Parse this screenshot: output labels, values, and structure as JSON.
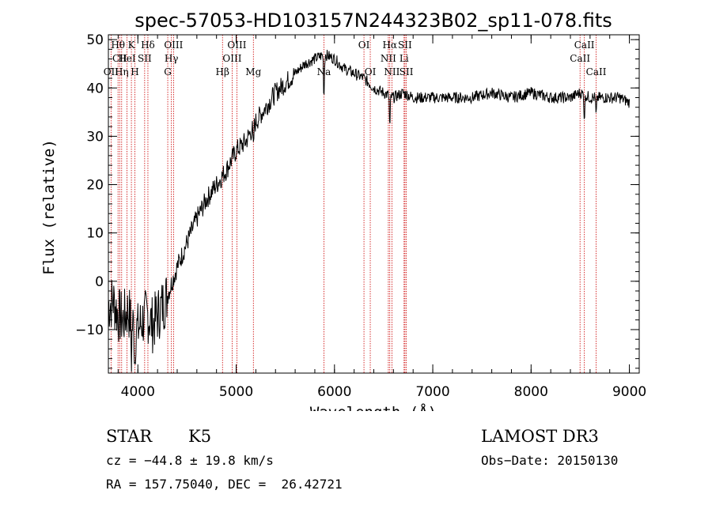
{
  "chart_data": {
    "type": "line",
    "title": "spec-57053-HD103157N244323B02_sp11-078.fits",
    "xlabel": "Wavelength (Å)",
    "ylabel": "Flux (relative)",
    "xlim": [
      3700,
      9100
    ],
    "ylim": [
      -19,
      51
    ],
    "xticks": [
      4000,
      5000,
      6000,
      7000,
      8000,
      9000
    ],
    "yticks": [
      -10,
      0,
      10,
      20,
      30,
      40,
      50
    ],
    "series": [
      {
        "name": "spectrum",
        "x": [
          3700,
          3750,
          3800,
          3850,
          3900,
          3950,
          4000,
          4050,
          4100,
          4150,
          4200,
          4250,
          4300,
          4400,
          4500,
          4600,
          4700,
          4800,
          4900,
          5000,
          5100,
          5200,
          5300,
          5400,
          5500,
          5600,
          5700,
          5800,
          5900,
          6000,
          6100,
          6200,
          6300,
          6400,
          6500,
          6600,
          6700,
          6800,
          7000,
          7200,
          7400,
          7600,
          7800,
          8000,
          8200,
          8400,
          8500,
          8600,
          8700,
          8800,
          8900,
          9000
        ],
        "y": [
          -5,
          -4,
          -7,
          -8,
          -6,
          -9,
          -10,
          -8,
          -7,
          -9,
          -7,
          -5,
          -3,
          3,
          8,
          13,
          17,
          20,
          23,
          27,
          29,
          33,
          36,
          39,
          41,
          43,
          45,
          46,
          47,
          46,
          44,
          43,
          42,
          40,
          39,
          38,
          39,
          38,
          38,
          38,
          38,
          39,
          38,
          39,
          38,
          38,
          39,
          38,
          38,
          38,
          38,
          37
        ]
      }
    ],
    "spectral_lines": [
      {
        "name": "Hθ",
        "wavelength": 3798,
        "row": 0
      },
      {
        "name": "CII",
        "wavelength": 3815,
        "row": 1
      },
      {
        "name": "OII",
        "wavelength": 3727,
        "row": 2
      },
      {
        "name": "HeI",
        "wavelength": 3889,
        "row": 1
      },
      {
        "name": "Hη",
        "wavelength": 3835,
        "row": 2
      },
      {
        "name": "K",
        "wavelength": 3934,
        "row": 0
      },
      {
        "name": "H",
        "wavelength": 3969,
        "row": 2
      },
      {
        "name": "SII",
        "wavelength": 4069,
        "row": 1
      },
      {
        "name": "Hδ",
        "wavelength": 4102,
        "row": 0
      },
      {
        "name": "OIII",
        "wavelength": 4363,
        "row": 0
      },
      {
        "name": "Hγ",
        "wavelength": 4341,
        "row": 1
      },
      {
        "name": "G",
        "wavelength": 4304,
        "row": 2
      },
      {
        "name": "Hβ",
        "wavelength": 4861,
        "row": 2
      },
      {
        "name": "OIII",
        "wavelength": 5007,
        "row": 0
      },
      {
        "name": "OIII",
        "wavelength": 4959,
        "row": 1
      },
      {
        "name": "Mg",
        "wavelength": 5175,
        "row": 2
      },
      {
        "name": "Na",
        "wavelength": 5893,
        "row": 2
      },
      {
        "name": "OI",
        "wavelength": 6300,
        "row": 0
      },
      {
        "name": "OI",
        "wavelength": 6364,
        "row": 2
      },
      {
        "name": "Hα",
        "wavelength": 6563,
        "row": 0
      },
      {
        "name": "NII",
        "wavelength": 6548,
        "row": 1
      },
      {
        "name": "NII",
        "wavelength": 6584,
        "row": 2
      },
      {
        "name": "SII",
        "wavelength": 6717,
        "row": 0
      },
      {
        "name": "Li",
        "wavelength": 6708,
        "row": 1
      },
      {
        "name": "SII",
        "wavelength": 6731,
        "row": 2
      },
      {
        "name": "CaII",
        "wavelength": 8542,
        "row": 0
      },
      {
        "name": "CaII",
        "wavelength": 8498,
        "row": 1
      },
      {
        "name": "CaII",
        "wavelength": 8662,
        "row": 2
      }
    ]
  },
  "info": {
    "object_class": "STAR",
    "subclass": "K5",
    "survey": "LAMOST DR3",
    "cz": "cz = −44.8 ± 19.8 km/s",
    "obs_date": "Obs−Date: 20150130",
    "coords": "RA = 157.75040, DEC =  26.42721"
  },
  "colors": {
    "spectrum": "#000000",
    "line_marker": "#cc0000"
  }
}
